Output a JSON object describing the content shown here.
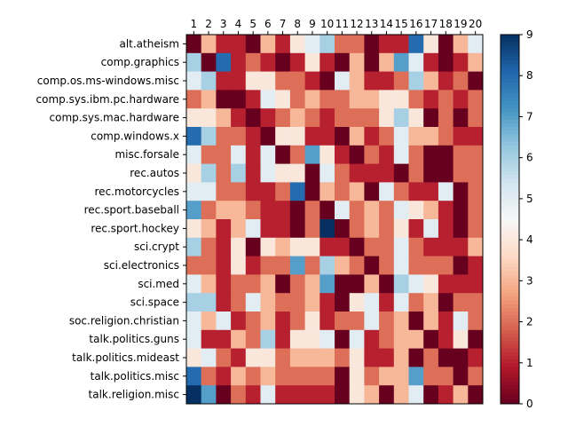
{
  "chart_data": {
    "type": "heatmap",
    "title": "",
    "xlabel": "",
    "ylabel": "",
    "x_labels": [
      "1",
      "2",
      "3",
      "4",
      "5",
      "6",
      "7",
      "8",
      "9",
      "10",
      "11",
      "12",
      "13",
      "14",
      "15",
      "16",
      "17",
      "18",
      "19",
      "20"
    ],
    "y_labels": [
      "alt.atheism",
      "comp.graphics",
      "comp.os.ms-windows.misc",
      "comp.sys.ibm.pc.hardware",
      "comp.sys.mac.hardware",
      "comp.windows.x",
      "misc.forsale",
      "rec.autos",
      "rec.motorcycles",
      "rec.sport.baseball",
      "rec.sport.hockey",
      "sci.crypt",
      "sci.electronics",
      "sci.med",
      "sci.space",
      "soc.religion.christian",
      "talk.politics.guns",
      "talk.politics.mideast",
      "talk.politics.misc",
      "talk.religion.misc"
    ],
    "values": [
      [
        0,
        3,
        1,
        1,
        0,
        3,
        1,
        4,
        5,
        6,
        2,
        2,
        0,
        1,
        1,
        8,
        4,
        0,
        3,
        5
      ],
      [
        6,
        0,
        8,
        1,
        2,
        1,
        0,
        1,
        4,
        1,
        0,
        3,
        0,
        3,
        7,
        5,
        1,
        0,
        1,
        3
      ],
      [
        5,
        6,
        1,
        1,
        4,
        4,
        2,
        2,
        1,
        0,
        5,
        3,
        1,
        1,
        2,
        6,
        3,
        1,
        2,
        0
      ],
      [
        2,
        3,
        0,
        0,
        1,
        5,
        4,
        2,
        3,
        2,
        2,
        3,
        3,
        4,
        4,
        2,
        1,
        2,
        1,
        2
      ],
      [
        4,
        4,
        3,
        1,
        0,
        1,
        2,
        3,
        2,
        1,
        2,
        2,
        2,
        4,
        6,
        4,
        0,
        2,
        0,
        2
      ],
      [
        8,
        6,
        2,
        2,
        1,
        0,
        4,
        4,
        1,
        1,
        0,
        3,
        1,
        2,
        5,
        3,
        3,
        2,
        1,
        1
      ],
      [
        5,
        2,
        2,
        5,
        1,
        5,
        0,
        2,
        7,
        4,
        1,
        0,
        2,
        1,
        5,
        2,
        0,
        0,
        2,
        2
      ],
      [
        4,
        6,
        2,
        6,
        1,
        5,
        4,
        4,
        0,
        5,
        2,
        1,
        1,
        1,
        0,
        2,
        0,
        0,
        2,
        2
      ],
      [
        5,
        5,
        2,
        2,
        1,
        1,
        2,
        8,
        0,
        3,
        2,
        3,
        0,
        5,
        2,
        1,
        1,
        5,
        0,
        2
      ],
      [
        7,
        2,
        3,
        3,
        2,
        1,
        1,
        0,
        2,
        0,
        5,
        2,
        3,
        2,
        5,
        4,
        3,
        1,
        0,
        2
      ],
      [
        4,
        3,
        1,
        3,
        5,
        1,
        1,
        0,
        2,
        9,
        0,
        2,
        3,
        2,
        4,
        1,
        5,
        1,
        0,
        2
      ],
      [
        6,
        2,
        1,
        4,
        0,
        4,
        3,
        4,
        4,
        1,
        1,
        0,
        2,
        2,
        5,
        2,
        1,
        1,
        1,
        3
      ],
      [
        2,
        2,
        1,
        4,
        1,
        2,
        2,
        7,
        2,
        6,
        3,
        2,
        0,
        2,
        5,
        2,
        2,
        2,
        0,
        1
      ],
      [
        5,
        3,
        1,
        2,
        2,
        3,
        0,
        2,
        3,
        7,
        0,
        0,
        3,
        0,
        6,
        5,
        4,
        1,
        1,
        1
      ],
      [
        6,
        6,
        1,
        2,
        5,
        3,
        2,
        2,
        3,
        1,
        0,
        4,
        5,
        1,
        5,
        2,
        3,
        0,
        2,
        2
      ],
      [
        5,
        3,
        5,
        1,
        2,
        3,
        1,
        2,
        4,
        1,
        2,
        2,
        5,
        2,
        3,
        0,
        3,
        1,
        5,
        2
      ],
      [
        5,
        1,
        1,
        3,
        2,
        6,
        1,
        4,
        4,
        5,
        0,
        5,
        1,
        2,
        3,
        3,
        0,
        1,
        4,
        0
      ],
      [
        4,
        5,
        2,
        1,
        4,
        4,
        2,
        3,
        3,
        3,
        2,
        4,
        1,
        1,
        3,
        0,
        2,
        0,
        0,
        1
      ],
      [
        8,
        2,
        1,
        3,
        2,
        3,
        2,
        2,
        2,
        2,
        0,
        4,
        2,
        3,
        3,
        7,
        2,
        2,
        0,
        2
      ],
      [
        9,
        7,
        0,
        2,
        1,
        5,
        1,
        1,
        1,
        1,
        0,
        4,
        3,
        0,
        3,
        5,
        0,
        1,
        3,
        0
      ]
    ],
    "vmin": 0,
    "vmax": 9,
    "colormap": "RdBu",
    "colorbar_ticks": [
      0,
      1,
      2,
      3,
      4,
      5,
      6,
      7,
      8,
      9
    ],
    "x_ticks_position": "top",
    "grid": false,
    "colors": {
      "low": "#67001f",
      "mid": "#f7f7f7",
      "high": "#053061"
    }
  }
}
